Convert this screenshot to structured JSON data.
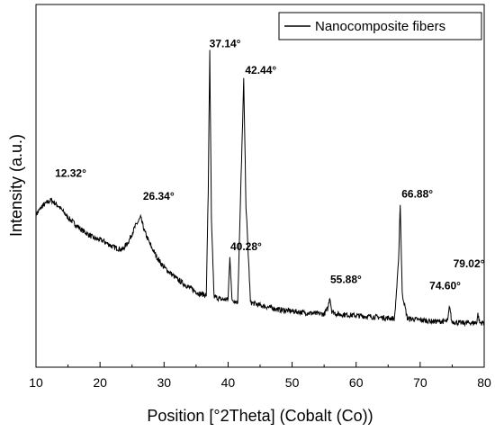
{
  "chart_data": {
    "type": "line",
    "xlabel": "Position [°2Theta] (Cobalt (Co))",
    "ylabel": "Intensity (a.u.)",
    "xlim": [
      10,
      80
    ],
    "xticks": [
      10,
      20,
      30,
      40,
      50,
      60,
      70,
      80
    ],
    "yticks_labeled": false,
    "grid": false,
    "legend_position": "top-right",
    "series": [
      {
        "name": "Nanocomposite fibers",
        "color": "#000000",
        "x": [
          10,
          11,
          12.32,
          13.5,
          15,
          17,
          19,
          20.5,
          22,
          23.5,
          24.5,
          25.5,
          26.34,
          27,
          28,
          29,
          30,
          32,
          34,
          35.5,
          36.6,
          36.9,
          37.14,
          37.4,
          37.8,
          39,
          40.0,
          40.28,
          40.6,
          41.5,
          42.1,
          42.44,
          42.8,
          43.5,
          45,
          48,
          50,
          52,
          55,
          55.6,
          55.88,
          56.2,
          57,
          60,
          63,
          66,
          66.6,
          66.88,
          67.2,
          68,
          70,
          72,
          74.3,
          74.6,
          74.9,
          76,
          78,
          78.8,
          79.02,
          79.3,
          80
        ],
        "y": [
          42,
          45,
          47,
          45,
          41,
          37,
          34,
          33,
          31,
          30,
          33,
          38,
          41,
          36,
          31,
          27,
          24,
          20,
          17,
          15,
          14.5,
          50,
          98,
          40,
          14,
          13,
          13,
          28,
          13,
          12,
          60,
          88,
          45,
          12,
          11,
          9.5,
          9,
          8.5,
          8,
          10,
          14,
          9,
          8,
          7.5,
          7,
          6.5,
          25,
          46,
          15,
          6.5,
          6,
          5.5,
          5.5,
          11,
          5.5,
          5,
          5,
          5,
          8,
          5,
          5
        ]
      }
    ],
    "ylim": [
      0,
      100
    ],
    "annotations": [
      {
        "text": "12.32°",
        "x": 12.32,
        "y": 47
      },
      {
        "text": "26.34°",
        "x": 26.34,
        "y": 41
      },
      {
        "text": "37.14°",
        "x": 37.14,
        "y": 98
      },
      {
        "text": "40.28°",
        "x": 40.28,
        "y": 28
      },
      {
        "text": "42.44°",
        "x": 42.44,
        "y": 88
      },
      {
        "text": "55.88°",
        "x": 55.88,
        "y": 14
      },
      {
        "text": "66.88°",
        "x": 66.88,
        "y": 46
      },
      {
        "text": "74.60°",
        "x": 74.6,
        "y": 11
      },
      {
        "text": "79.02°",
        "x": 79.02,
        "y": 8
      }
    ]
  }
}
